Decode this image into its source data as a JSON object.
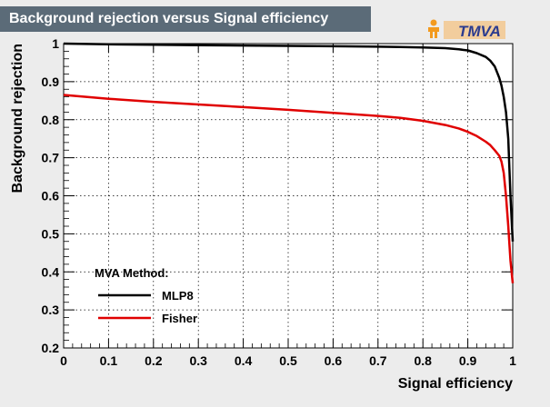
{
  "title": "Background rejection versus Signal efficiency",
  "logo_text": "TMVA",
  "colors": {
    "title_bg": "#5b6b78",
    "frame_bg": "#ffffff",
    "page_bg": "#ececec",
    "logo_orange": "#f39a1e",
    "logo_blue": "#2b3b8f"
  },
  "chart_data": {
    "type": "line",
    "title": "Background rejection versus Signal efficiency",
    "xlabel": "Signal efficiency",
    "ylabel": "Background rejection",
    "xlim": [
      0,
      1
    ],
    "ylim": [
      0.2,
      1
    ],
    "grid": true,
    "xticks": [
      "0",
      "0.1",
      "0.2",
      "0.3",
      "0.4",
      "0.5",
      "0.6",
      "0.7",
      "0.8",
      "0.9",
      "1"
    ],
    "yticks": [
      "0.2",
      "0.3",
      "0.4",
      "0.5",
      "0.6",
      "0.7",
      "0.8",
      "0.9",
      "1"
    ],
    "legend": {
      "title": "MVA Method:",
      "placement": "bottom-left"
    },
    "series": [
      {
        "name": "MLP8",
        "color": "#000000",
        "x": [
          0,
          0.1,
          0.2,
          0.3,
          0.4,
          0.5,
          0.6,
          0.7,
          0.75,
          0.8,
          0.85,
          0.88,
          0.9,
          0.92,
          0.94,
          0.95,
          0.96,
          0.97,
          0.975,
          0.98,
          0.985,
          0.99,
          0.995,
          1.0
        ],
        "y": [
          1.0,
          0.998,
          0.997,
          0.996,
          0.995,
          0.994,
          0.993,
          0.992,
          0.991,
          0.99,
          0.988,
          0.985,
          0.982,
          0.975,
          0.965,
          0.955,
          0.94,
          0.91,
          0.89,
          0.86,
          0.82,
          0.75,
          0.6,
          0.48
        ]
      },
      {
        "name": "Fisher",
        "color": "#e00000",
        "x": [
          0,
          0.1,
          0.2,
          0.3,
          0.4,
          0.5,
          0.6,
          0.7,
          0.75,
          0.8,
          0.85,
          0.88,
          0.9,
          0.92,
          0.94,
          0.95,
          0.96,
          0.97,
          0.975,
          0.98,
          0.985,
          0.99,
          0.995,
          1.0
        ],
        "y": [
          0.865,
          0.855,
          0.847,
          0.84,
          0.833,
          0.826,
          0.818,
          0.81,
          0.805,
          0.797,
          0.786,
          0.777,
          0.768,
          0.757,
          0.742,
          0.733,
          0.72,
          0.705,
          0.69,
          0.66,
          0.6,
          0.52,
          0.43,
          0.37
        ]
      }
    ]
  }
}
